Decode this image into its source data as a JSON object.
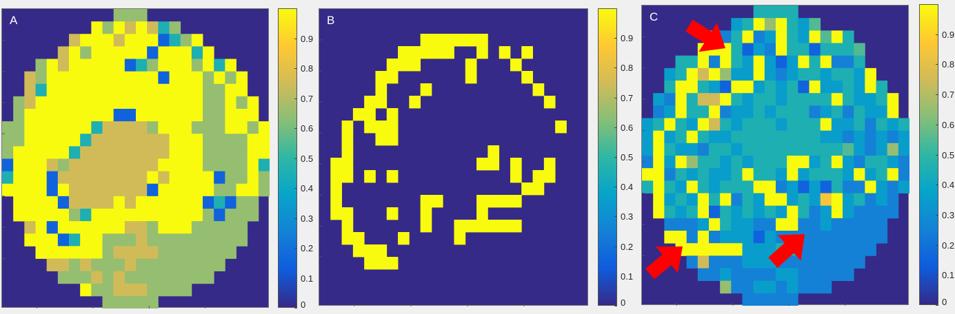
{
  "colormap": "parula",
  "colors": {
    "zero": "#352a87",
    "one": "#f9fb0e",
    "arrow": "#ff0000",
    "background": "#f0f0f0"
  },
  "chart_data": [
    {
      "type": "heatmap",
      "panel_label": "A",
      "grid_encoding": "digit d = value d/10+0.05, 9 = ~1.0, . = 0",
      "clim": [
        0,
        1
      ],
      "colorbar_ticks": [
        "0",
        "0.1",
        "0.2",
        "0.3",
        "0.4",
        "0.5",
        "0.6",
        "0.7",
        "0.8",
        "0.9"
      ],
      "grid": [
        "..........666...........",
        "........96979746........",
        "......799979991469......",
        ".....79699999199949.....",
        "...697999991469996949...",
        "..76999999999919996969..",
        "..74999999999999996699..",
        ".6799999999999999966969.",
        ".6999999991199999966999.",
        "669999994777769996669969",
        "669999947777777999666699",
        "699999477777777999666699",
        "199976777777779999666694",
        "499917777777797999916696",
        "999919777777719999966996",
        ".9999177779799999914166.",
        ".9999964999999999961666.",
        "..79199999977699966666..",
        "..99914996667666666666..",
        "...999999677776666666...",
        "....7767666766666666....",
        ".....66676766666666.....",
        ".......9667776666.......",
        ".........66666.........."
      ]
    },
    {
      "type": "heatmap",
      "panel_label": "B",
      "clim": [
        0,
        1
      ],
      "colorbar_ticks": [
        "0",
        "0.1",
        "0.2",
        "0.3",
        "0.4",
        "0.5",
        "0.6",
        "0.7",
        "0.8",
        "0.9"
      ],
      "grid": [
        "........................",
        "........................",
        ".........999999.........",
        ".......99999..9.9.9.....",
        "......999....9...9......",
        ".....99......9....9.....",
        ".....9...9.........9....",
        "....99..9...........9...",
        "...99.9.................",
        "..9.999..............9..",
        "..9..99.................",
        "..9............9........",
        ".99...........99.9..9...",
        ".99.9.9..........9.99...",
        ".9................99....",
        ".9.......99...9999......",
        ".99...9..9....9.........",
        "..9......9..999999......",
        "..99...9....9...........",
        "...999..................",
        "....999.................",
        "........................",
        "........................",
        "........................"
      ]
    },
    {
      "type": "heatmap",
      "panel_label": "C",
      "clim": [
        0,
        1
      ],
      "colorbar_ticks": [
        "0",
        "0.1",
        "0.2",
        "0.3",
        "0.4",
        "0.5",
        "0.6",
        "0.7",
        "0.8",
        "0.9"
      ],
      "annotations": [
        {
          "type": "arrow",
          "color": "#ff0000",
          "points_to": "upper-left yellow cluster"
        },
        {
          "type": "arrow",
          "color": "#ff0000",
          "points_to": "lower-left yellow cluster"
        },
        {
          "type": "arrow",
          "color": "#ff0000",
          "points_to": "lower-center yellow cluster"
        }
      ],
      "grid": [
        "..........4444..........",
        "........34969435........",
        "......7249239439594.....",
        ".....999413294414445....",
        "...44929439313949224....",
        "..3497963393234434439...",
        "..49943199343419334394..",
        ".3294779434434444943349.",
        ".2394492334344423424339.",
        "349439743444344493342434",
        "393494334444444433232323",
        "394332443444444444532363",
        "293964434344499349324432",
        "992434334944393444393492",
        "494394344499231314229323",
        ".9343949243993438934232.",
        ".9434914343439423932222.",
        "..22239433229922322222..",
        "..99292333132222222222..",
        "...999999333442222222...",
        "....2722233322222222....",
        ".....22322223322222.....",
        ".......6223323222.......",
        ".........22222.........."
      ]
    }
  ]
}
